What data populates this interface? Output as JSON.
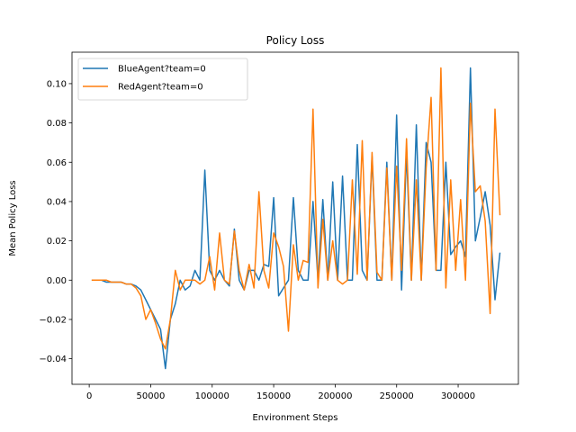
{
  "chart_data": {
    "type": "line",
    "title": "Policy Loss",
    "xlabel": "Environment Steps",
    "ylabel": "Mean Policy Loss",
    "xlim": [
      -14000,
      349000
    ],
    "ylim": [
      -0.053,
      0.116
    ],
    "xticks": [
      0,
      50000,
      100000,
      150000,
      200000,
      250000,
      300000
    ],
    "yticks": [
      -0.04,
      -0.02,
      0.0,
      0.02,
      0.04,
      0.06,
      0.08,
      0.1
    ],
    "ytick_labels": [
      "−0.04",
      "−0.02",
      "0.00",
      "0.02",
      "0.04",
      "0.06",
      "0.08",
      "0.10"
    ],
    "grid": false,
    "legend_position": "upper-left",
    "series": [
      {
        "name": "BlueAgent?team=0",
        "color": "#1f77b4",
        "x": [
          2000,
          6000,
          10000,
          14000,
          18000,
          22000,
          26000,
          30000,
          34000,
          38000,
          42000,
          46000,
          50000,
          54000,
          58000,
          62000,
          66000,
          70000,
          74000,
          78000,
          82000,
          86000,
          90000,
          94000,
          98000,
          102000,
          106000,
          110000,
          114000,
          118000,
          122000,
          126000,
          130000,
          134000,
          138000,
          142000,
          146000,
          150000,
          154000,
          158000,
          162000,
          166000,
          170000,
          174000,
          178000,
          182000,
          186000,
          190000,
          194000,
          198000,
          202000,
          206000,
          210000,
          214000,
          218000,
          222000,
          226000,
          230000,
          234000,
          238000,
          242000,
          246000,
          250000,
          254000,
          258000,
          262000,
          266000,
          270000,
          274000,
          278000,
          282000,
          286000,
          290000,
          294000,
          298000,
          302000,
          306000,
          310000,
          314000,
          318000,
          322000,
          326000,
          330000,
          334000
        ],
        "y": [
          0.0,
          0.0,
          0.0,
          -0.001,
          -0.001,
          -0.001,
          -0.001,
          -0.002,
          -0.002,
          -0.003,
          -0.005,
          -0.01,
          -0.015,
          -0.02,
          -0.025,
          -0.045,
          -0.02,
          -0.012,
          0.0,
          -0.005,
          -0.003,
          0.005,
          0.0,
          0.056,
          0.005,
          0.0,
          0.005,
          0.0,
          -0.003,
          0.026,
          0.0,
          -0.005,
          0.005,
          0.005,
          0.0,
          0.008,
          0.007,
          0.042,
          -0.008,
          -0.004,
          0.0,
          0.042,
          0.005,
          0.0,
          0.0,
          0.04,
          0.0,
          0.041,
          0.0,
          0.05,
          0.0,
          0.053,
          0.0,
          0.0,
          0.069,
          0.005,
          0.0,
          0.063,
          0.0,
          0.0,
          0.06,
          0.0,
          0.084,
          -0.005,
          0.065,
          0.0,
          0.079,
          0.0,
          0.07,
          0.06,
          0.005,
          0.005,
          0.06,
          0.013,
          0.017,
          0.02,
          0.012,
          0.108,
          0.02,
          0.032,
          0.045,
          0.028,
          -0.01,
          0.014
        ]
      },
      {
        "name": "RedAgent?team=0",
        "color": "#ff7f0e",
        "x": [
          2000,
          6000,
          10000,
          14000,
          18000,
          22000,
          26000,
          30000,
          34000,
          38000,
          42000,
          46000,
          50000,
          54000,
          58000,
          62000,
          66000,
          70000,
          74000,
          78000,
          82000,
          86000,
          90000,
          94000,
          98000,
          102000,
          106000,
          110000,
          114000,
          118000,
          122000,
          126000,
          130000,
          134000,
          138000,
          142000,
          146000,
          150000,
          154000,
          158000,
          162000,
          166000,
          170000,
          174000,
          178000,
          182000,
          186000,
          190000,
          194000,
          198000,
          202000,
          206000,
          210000,
          214000,
          218000,
          222000,
          226000,
          230000,
          234000,
          238000,
          242000,
          246000,
          250000,
          254000,
          258000,
          262000,
          266000,
          270000,
          274000,
          278000,
          282000,
          286000,
          290000,
          294000,
          298000,
          302000,
          306000,
          310000,
          314000,
          318000,
          322000,
          326000,
          330000,
          334000
        ],
        "y": [
          0.0,
          0.0,
          0.0,
          0.0,
          -0.001,
          -0.001,
          -0.001,
          -0.002,
          -0.002,
          -0.004,
          -0.008,
          -0.02,
          -0.015,
          -0.022,
          -0.03,
          -0.035,
          -0.02,
          0.005,
          -0.005,
          0.0,
          0.0,
          0.0,
          -0.002,
          0.0,
          0.012,
          -0.005,
          0.024,
          0.0,
          -0.002,
          0.025,
          0.005,
          -0.005,
          0.008,
          -0.004,
          0.045,
          0.005,
          -0.004,
          0.024,
          0.017,
          0.007,
          -0.026,
          0.018,
          0.0,
          0.01,
          0.009,
          0.087,
          -0.004,
          0.031,
          0.0,
          0.02,
          0.0,
          -0.002,
          0.0,
          0.051,
          0.003,
          0.071,
          0.0,
          0.065,
          0.004,
          0.0,
          0.057,
          0.0,
          0.058,
          0.005,
          0.072,
          0.0,
          0.051,
          0.0,
          0.057,
          0.093,
          0.005,
          0.108,
          -0.004,
          0.051,
          0.005,
          0.041,
          0.0,
          0.09,
          0.045,
          0.048,
          0.03,
          -0.017,
          0.087,
          0.033
        ]
      }
    ]
  }
}
